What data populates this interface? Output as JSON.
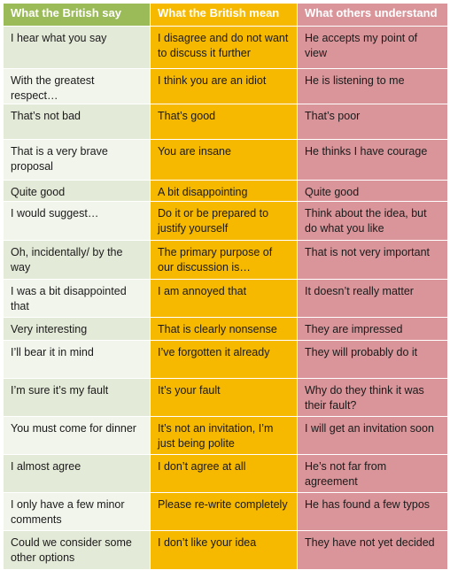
{
  "table": {
    "headers": [
      "What the British say",
      "What the British mean",
      "What others understand"
    ],
    "rows": [
      [
        "I hear what you say",
        "I disagree and do not want to discuss it further",
        "He accepts my point of view"
      ],
      [
        "With the greatest respect…",
        "I think you are an idiot",
        "He is listening to me"
      ],
      [
        "That’s not bad",
        "That’s good",
        "That’s poor"
      ],
      [
        "That is a very brave proposal",
        "You are insane",
        "He thinks I have courage"
      ],
      [
        "Quite good",
        "A bit disappointing",
        "Quite good"
      ],
      [
        "I would suggest…",
        "Do it or be prepared to justify yourself",
        "Think about the idea, but do what you like"
      ],
      [
        "Oh, incidentally/ by the way",
        "The primary purpose of our discussion is…",
        "That is not very important"
      ],
      [
        "I was a bit disappointed that",
        "I am annoyed that",
        "It doesn’t really matter"
      ],
      [
        "Very interesting",
        "That is clearly nonsense",
        "They are impressed"
      ],
      [
        "I’ll bear it in mind",
        "I’ve forgotten it already",
        "They will probably do it"
      ],
      [
        "I’m sure it’s my fault",
        "It’s your fault",
        "Why do they think it was their fault?"
      ],
      [
        "You must come for dinner",
        "It’s not an invitation, I’m just being polite",
        "I will get an invitation soon"
      ],
      [
        "I almost agree",
        "I don’t agree at all",
        "He’s not far from agreement"
      ],
      [
        "I only have a few minor comments",
        "Please re-write completely",
        "He has found a few typos"
      ],
      [
        "Could we consider some other options",
        "I don’t like your idea",
        "They have not yet decided"
      ]
    ]
  },
  "colors": {
    "header_say": "#9bbb59",
    "header_mean": "#f6b900",
    "header_understand": "#d9959a",
    "say_row_odd": "#e4ead8",
    "say_row_even": "#f2f5ec",
    "mean_cell": "#f6b900",
    "understand_cell": "#d9959a"
  }
}
